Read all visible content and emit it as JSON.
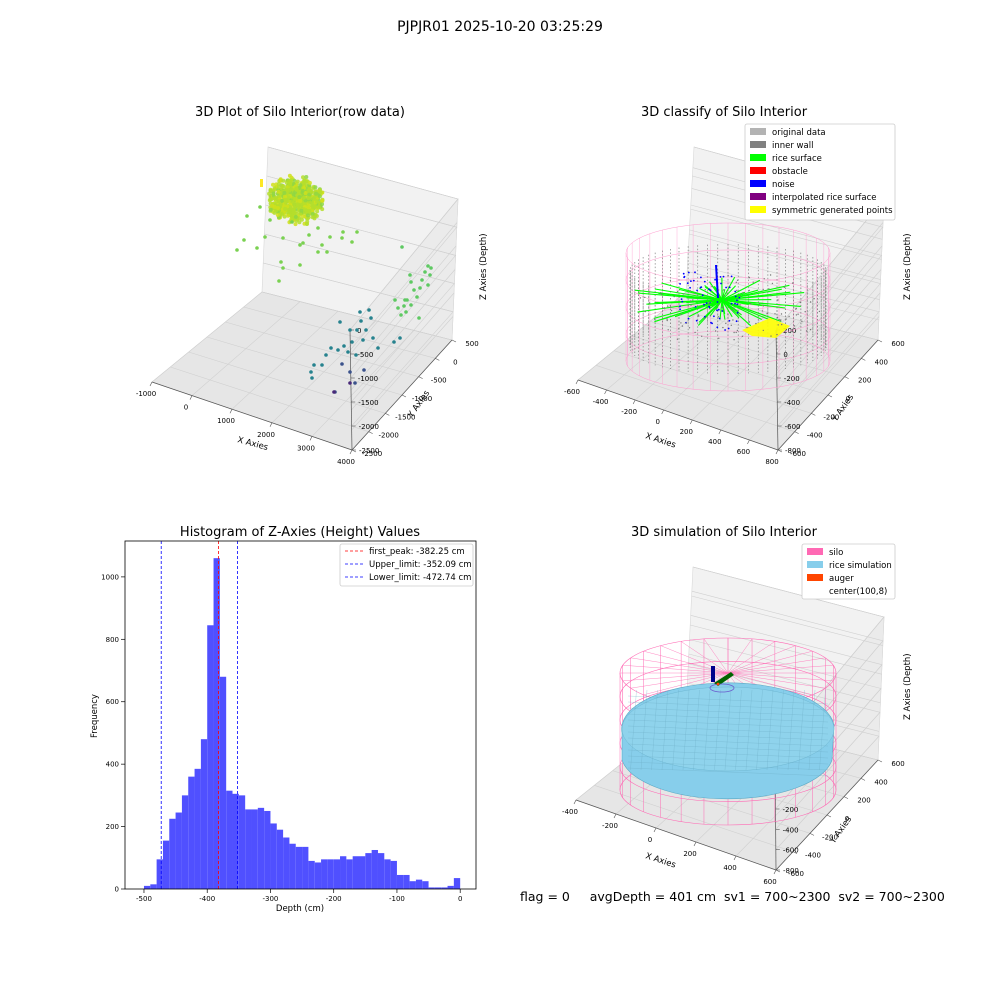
{
  "figure": {
    "suptitle": "PJPJR01 2025-10-20 03:25:29",
    "footer": "flag = 0     avgDepth = 401 cm  sv1 = 700~2300  sv2 = 700~2300"
  },
  "colors": {
    "histogram_bar": "#5050ff",
    "first_peak": "#ff0000",
    "limits": "#0000ff",
    "original_data": "#b3b3b3",
    "inner_wall": "#808080",
    "rice_surface": "#00ff00",
    "obstacle": "#ff0000",
    "noise": "#0000ff",
    "interpolated_rice_surface": "#800080",
    "symmetric_generated_points": "#ffff00",
    "silo": "#ff69b4",
    "rice_simulation": "#87ceeb",
    "auger": "#ff4500"
  },
  "chart_data": [
    {
      "type": "scatter",
      "projection": "3d",
      "title": "3D Plot of Silo Interior(row data)",
      "xlabel": "X Axies",
      "ylabel": "Y Axies",
      "zlabel": "Z Axies (Depth)",
      "xticks": [
        "-1000",
        "0",
        "1000",
        "2000",
        "3000",
        "4000"
      ],
      "yticks": [
        "500",
        "0",
        "-500",
        "-1000",
        "-1500",
        "-2000",
        "-2500"
      ],
      "zticks": [
        "0",
        "-500",
        "-1000",
        "-1500",
        "-2000",
        "-2500"
      ],
      "colormap": "viridis",
      "grid": true
    },
    {
      "type": "scatter",
      "projection": "3d",
      "title": "3D classify of Silo Interior",
      "xlabel": "X Axies",
      "ylabel": "Y Axies",
      "zlabel": "Z Axies (Depth)",
      "xticks": [
        "-600",
        "-400",
        "-200",
        "0",
        "200",
        "400",
        "600",
        "800"
      ],
      "yticks": [
        "600",
        "400",
        "200",
        "0",
        "-200",
        "-400",
        "-600"
      ],
      "zticks": [
        "200",
        "0",
        "-200",
        "-400",
        "-600",
        "-800"
      ],
      "legend": {
        "position": "upper right",
        "entries": [
          {
            "label": "original data",
            "color": "#b3b3b3"
          },
          {
            "label": "inner wall",
            "color": "#808080"
          },
          {
            "label": "rice surface",
            "color": "#00ff00"
          },
          {
            "label": "obstacle",
            "color": "#ff0000"
          },
          {
            "label": "noise",
            "color": "#0000ff"
          },
          {
            "label": "interpolated rice surface",
            "color": "#800080"
          },
          {
            "label": "symmetric generated points",
            "color": "#ffff00"
          }
        ]
      },
      "grid": true
    },
    {
      "type": "bar",
      "subtype": "histogram",
      "title": "Histogram of Z-Axies (Height) Values",
      "xlabel": "Depth (cm)",
      "ylabel": "Frequency",
      "xlim": [
        -530,
        25
      ],
      "ylim": [
        0,
        1115
      ],
      "xticks": [
        -500,
        -400,
        -300,
        -200,
        -100,
        0
      ],
      "yticks": [
        0,
        200,
        400,
        600,
        800,
        1000
      ],
      "bin_width": 10,
      "bins_start": [
        -500,
        -490,
        -480,
        -470,
        -460,
        -450,
        -440,
        -430,
        -420,
        -410,
        -400,
        -390,
        -380,
        -370,
        -360,
        -350,
        -340,
        -330,
        -320,
        -310,
        -300,
        -290,
        -280,
        -270,
        -260,
        -250,
        -240,
        -230,
        -220,
        -210,
        -200,
        -190,
        -180,
        -170,
        -160,
        -150,
        -140,
        -130,
        -120,
        -110,
        -100,
        -90,
        -80,
        -70,
        -60,
        -50,
        -40,
        -30,
        -20,
        -10,
        0
      ],
      "values": [
        10,
        15,
        95,
        155,
        225,
        245,
        300,
        360,
        385,
        480,
        845,
        1060,
        680,
        315,
        305,
        300,
        255,
        255,
        260,
        250,
        210,
        190,
        165,
        145,
        135,
        135,
        90,
        85,
        95,
        95,
        95,
        105,
        95,
        105,
        105,
        115,
        125,
        115,
        95,
        90,
        45,
        45,
        25,
        30,
        25,
        5,
        5,
        5,
        10,
        35,
        0
      ],
      "vlines": [
        {
          "name": "first_peak: -382.25 cm",
          "x": -382.25,
          "color": "#ff0000"
        },
        {
          "name": "Upper_limit: -352.09 cm",
          "x": -352.09,
          "color": "#0000ff"
        },
        {
          "name": "Lower_limit: -472.74 cm",
          "x": -472.74,
          "color": "#0000ff"
        }
      ],
      "legend": {
        "position": "upper right"
      },
      "grid": false
    },
    {
      "type": "surface",
      "projection": "3d",
      "title": "3D simulation of Silo Interior",
      "xlabel": "X Axies",
      "ylabel": "Y Axies",
      "zlabel": "Z Axies (Depth)",
      "xticks": [
        "-400",
        "-200",
        "0",
        "200",
        "400",
        "600"
      ],
      "yticks": [
        "600",
        "400",
        "200",
        "0",
        "-200",
        "-400",
        "-600"
      ],
      "zticks": [
        "400",
        "200",
        "0",
        "-200",
        "-400",
        "-600",
        "-800"
      ],
      "legend": {
        "position": "upper right",
        "entries": [
          {
            "label": "silo",
            "color": "#ff69b4"
          },
          {
            "label": "rice simulation",
            "color": "#87ceeb"
          },
          {
            "label": "auger",
            "color": "#ff4500"
          },
          {
            "label": "center(100,8)",
            "color": ""
          }
        ]
      },
      "grid": true
    }
  ]
}
